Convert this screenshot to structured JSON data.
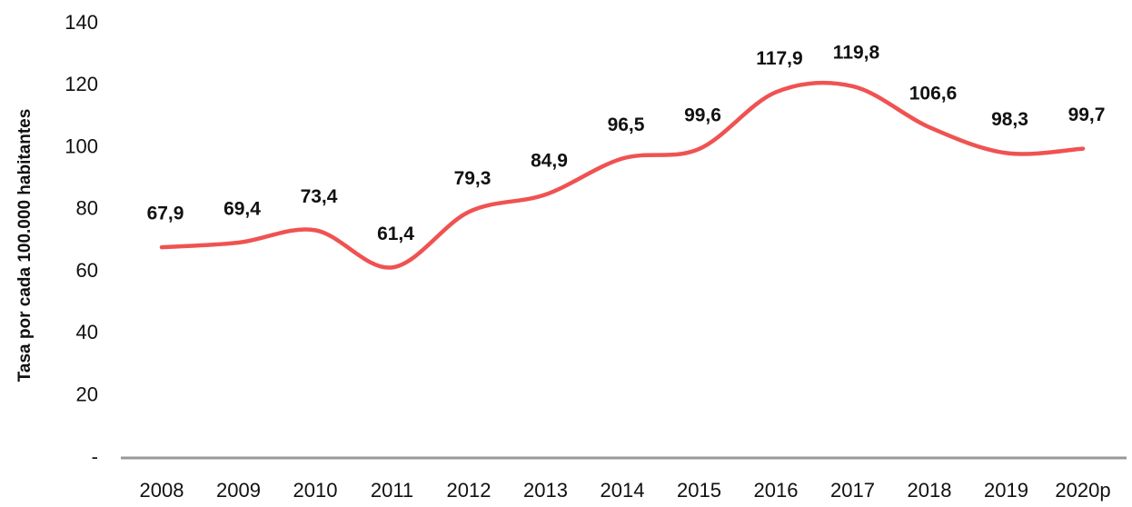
{
  "chart_data": {
    "type": "line",
    "y_label": "Tasa por cada 100.000 habitantes",
    "categories": [
      "2008",
      "2009",
      "2010",
      "2011",
      "2012",
      "2013",
      "2014",
      "2015",
      "2016",
      "2017",
      "2018",
      "2019",
      "2020p"
    ],
    "values": [
      67.9,
      69.4,
      73.4,
      61.4,
      79.3,
      84.9,
      96.5,
      99.6,
      117.9,
      119.8,
      106.6,
      98.3,
      99.7
    ],
    "value_labels": [
      "67,9",
      "69,4",
      "73,4",
      "61,4",
      "79,3",
      "84,9",
      "96,5",
      "99,6",
      "117,9",
      "119,8",
      "106,6",
      "98,3",
      "99,7"
    ],
    "color": "#f05252",
    "ylim": [
      0,
      140
    ],
    "yticks": [
      {
        "value": 0,
        "label": "-"
      },
      20,
      40,
      60,
      80,
      100,
      120,
      140
    ]
  }
}
